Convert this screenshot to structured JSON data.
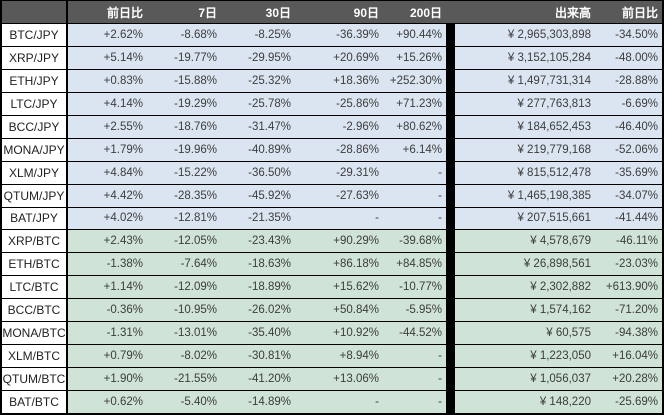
{
  "colors": {
    "header_bg": "#595959",
    "jpy_row_bg": "#dbe5f1",
    "btc_row_bg": "#cfe3d6",
    "label_bg": "#ffffff",
    "separator": "#000000",
    "border": "#000000",
    "header_text": "#ffffff",
    "data_text": "#3c3c3c"
  },
  "chart_data": {
    "type": "table",
    "title": "",
    "columns": [
      "",
      "前日比",
      "7日",
      "30日",
      "90日",
      "200日",
      "出来高",
      "前日比"
    ],
    "rows": [
      {
        "pair": "BTC/JPY",
        "quote": "JPY",
        "change_1d": "+2.62%",
        "d7": "-8.68%",
        "d30": "-8.25%",
        "d90": "-36.39%",
        "d200": "+90.44%",
        "volume": "¥ 2,965,303,898",
        "volume_change_1d": "-34.50%"
      },
      {
        "pair": "XRP/JPY",
        "quote": "JPY",
        "change_1d": "+5.14%",
        "d7": "-19.77%",
        "d30": "-29.95%",
        "d90": "+20.69%",
        "d200": "+15.26%",
        "volume": "¥ 3,152,105,284",
        "volume_change_1d": "-48.00%"
      },
      {
        "pair": "ETH/JPY",
        "quote": "JPY",
        "change_1d": "+0.83%",
        "d7": "-15.88%",
        "d30": "-25.32%",
        "d90": "+18.36%",
        "d200": "+252.30%",
        "volume": "¥ 1,497,731,314",
        "volume_change_1d": "-28.88%"
      },
      {
        "pair": "LTC/JPY",
        "quote": "JPY",
        "change_1d": "+4.14%",
        "d7": "-19.29%",
        "d30": "-25.78%",
        "d90": "-25.86%",
        "d200": "+71.23%",
        "volume": "¥ 277,763,813",
        "volume_change_1d": "-6.69%"
      },
      {
        "pair": "BCC/JPY",
        "quote": "JPY",
        "change_1d": "+2.55%",
        "d7": "-18.76%",
        "d30": "-31.47%",
        "d90": "-2.96%",
        "d200": "+80.62%",
        "volume": "¥ 184,652,453",
        "volume_change_1d": "-46.40%"
      },
      {
        "pair": "MONA/JPY",
        "quote": "JPY",
        "change_1d": "+1.79%",
        "d7": "-19.96%",
        "d30": "-40.89%",
        "d90": "-28.86%",
        "d200": "+6.14%",
        "volume": "¥ 219,779,168",
        "volume_change_1d": "-52.06%"
      },
      {
        "pair": "XLM/JPY",
        "quote": "JPY",
        "change_1d": "+4.84%",
        "d7": "-15.22%",
        "d30": "-36.50%",
        "d90": "-29.31%",
        "d200": "-",
        "volume": "¥ 815,512,478",
        "volume_change_1d": "-35.69%"
      },
      {
        "pair": "QTUM/JPY",
        "quote": "JPY",
        "change_1d": "+4.42%",
        "d7": "-28.35%",
        "d30": "-45.92%",
        "d90": "-27.63%",
        "d200": "-",
        "volume": "¥ 1,465,198,385",
        "volume_change_1d": "-34.07%"
      },
      {
        "pair": "BAT/JPY",
        "quote": "JPY",
        "change_1d": "+4.02%",
        "d7": "-12.81%",
        "d30": "-21.35%",
        "d90": "-",
        "d200": "-",
        "volume": "¥ 207,515,661",
        "volume_change_1d": "-41.44%"
      },
      {
        "pair": "XRP/BTC",
        "quote": "BTC",
        "change_1d": "+2.43%",
        "d7": "-12.05%",
        "d30": "-23.43%",
        "d90": "+90.29%",
        "d200": "-39.68%",
        "volume": "¥ 4,578,679",
        "volume_change_1d": "-46.11%"
      },
      {
        "pair": "ETH/BTC",
        "quote": "BTC",
        "change_1d": "-1.38%",
        "d7": "-7.64%",
        "d30": "-18.63%",
        "d90": "+86.18%",
        "d200": "+84.85%",
        "volume": "¥ 26,898,561",
        "volume_change_1d": "-23.03%"
      },
      {
        "pair": "LTC/BTC",
        "quote": "BTC",
        "change_1d": "+1.14%",
        "d7": "-12.09%",
        "d30": "-18.89%",
        "d90": "+15.62%",
        "d200": "-10.77%",
        "volume": "¥ 2,302,882",
        "volume_change_1d": "+613.90%"
      },
      {
        "pair": "BCC/BTC",
        "quote": "BTC",
        "change_1d": "-0.36%",
        "d7": "-10.95%",
        "d30": "-26.02%",
        "d90": "+50.84%",
        "d200": "-5.95%",
        "volume": "¥ 1,574,162",
        "volume_change_1d": "-71.20%"
      },
      {
        "pair": "MONA/BTC",
        "quote": "BTC",
        "change_1d": "-1.31%",
        "d7": "-13.01%",
        "d30": "-35.40%",
        "d90": "+10.92%",
        "d200": "-44.52%",
        "volume": "¥ 60,575",
        "volume_change_1d": "-94.38%"
      },
      {
        "pair": "XLM/BTC",
        "quote": "BTC",
        "change_1d": "+0.79%",
        "d7": "-8.02%",
        "d30": "-30.81%",
        "d90": "+8.94%",
        "d200": "-",
        "volume": "¥ 1,223,050",
        "volume_change_1d": "+16.04%"
      },
      {
        "pair": "QTUM/BTC",
        "quote": "BTC",
        "change_1d": "+1.90%",
        "d7": "-21.55%",
        "d30": "-41.20%",
        "d90": "+13.06%",
        "d200": "-",
        "volume": "¥ 1,056,037",
        "volume_change_1d": "+20.28%"
      },
      {
        "pair": "BAT/BTC",
        "quote": "BTC",
        "change_1d": "+0.62%",
        "d7": "-5.40%",
        "d30": "-14.89%",
        "d90": "-",
        "d200": "-",
        "volume": "¥ 148,220",
        "volume_change_1d": "-25.69%"
      }
    ]
  }
}
